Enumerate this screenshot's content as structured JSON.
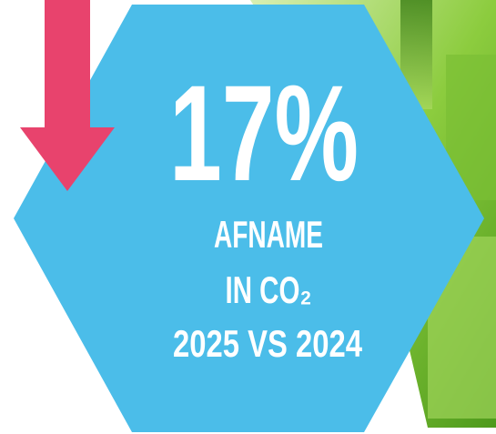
{
  "stat": "17%",
  "caption": [
    "AFNAME",
    "IN CO₂",
    "2025 VS 2024"
  ]
}
